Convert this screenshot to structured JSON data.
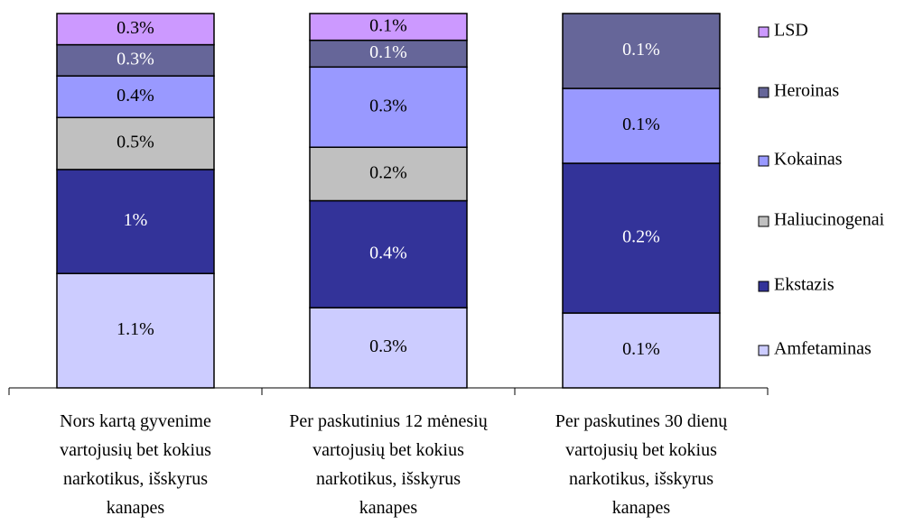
{
  "chart_data": {
    "type": "stacked_bar_100",
    "categories": [
      "Nors kartą gyvenime vartojusių bet kokius narkotikus, išskyrus kanapes",
      "Per paskutinius 12 mėnesių vartojusių bet kokius narkotikus, išskyrus kanapes",
      "Per paskutines 30 dienų vartojusių bet kokius narkotikus, išskyrus kanapes"
    ],
    "series": [
      {
        "name": "Amfetaminas",
        "color": "#ccccff",
        "values": [
          1.1,
          0.3,
          0.1
        ],
        "value_labels": [
          "1.1%",
          "0.3%",
          "0.1%"
        ]
      },
      {
        "name": "Ekstazis",
        "color": "#333399",
        "values": [
          1,
          0.4,
          0.2
        ],
        "value_labels": [
          "1%",
          "0.4%",
          "0.2%"
        ]
      },
      {
        "name": "Haliucinogenai",
        "color": "#c0c0c0",
        "values": [
          0.5,
          0.2,
          null
        ],
        "value_labels": [
          "0.5%",
          "0.2%",
          null
        ]
      },
      {
        "name": "Kokainas",
        "color": "#9999ff",
        "values": [
          0.4,
          0.3,
          0.1
        ],
        "value_labels": [
          "0.4%",
          "0.3%",
          "0.1%"
        ]
      },
      {
        "name": "Heroinas",
        "color": "#666699",
        "values": [
          0.3,
          0.1,
          0.1
        ],
        "value_labels": [
          "0.3%",
          "0.1%",
          "0.1%"
        ]
      },
      {
        "name": "LSD",
        "color": "#cc99ff",
        "values": [
          0.3,
          0.1,
          null
        ],
        "value_labels": [
          "0.3%",
          "0.1%",
          null
        ]
      }
    ],
    "legend": "right"
  }
}
